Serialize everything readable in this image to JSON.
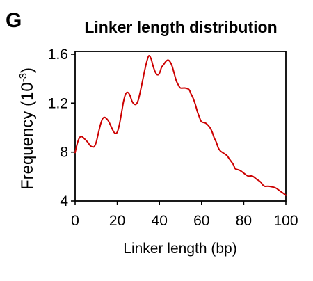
{
  "panel_label": "G",
  "chart_data": {
    "type": "line",
    "title": "Linker length distribution",
    "xlabel": "Linker length (bp)",
    "ylabel": {
      "main": "Frequency (10",
      "exponent": "-3",
      "close": ")"
    },
    "xlim": [
      0,
      100
    ],
    "ylim": [
      4,
      1.6
    ],
    "xticks": [
      0,
      20,
      40,
      60,
      80,
      100
    ],
    "xtick_labels": [
      "0",
      "20",
      "40",
      "60",
      "80",
      "100"
    ],
    "yticks": [
      {
        "label": "4",
        "frac": 0.0
      },
      {
        "label": "8",
        "frac": 0.333
      },
      {
        "label": "1.2",
        "frac": 0.667
      },
      {
        "label": "1.6",
        "frac": 1.0
      }
    ],
    "grid": false,
    "series": [
      {
        "color": "#cc0000",
        "points": [
          [
            0,
            0.33
          ],
          [
            1,
            0.39
          ],
          [
            2,
            0.43
          ],
          [
            3,
            0.44
          ],
          [
            4,
            0.43
          ],
          [
            6,
            0.4
          ],
          [
            7,
            0.38
          ],
          [
            8,
            0.37
          ],
          [
            9,
            0.37
          ],
          [
            10,
            0.4
          ],
          [
            11,
            0.46
          ],
          [
            12,
            0.52
          ],
          [
            13,
            0.56
          ],
          [
            14,
            0.57
          ],
          [
            15,
            0.56
          ],
          [
            16,
            0.54
          ],
          [
            18,
            0.48
          ],
          [
            19,
            0.46
          ],
          [
            20,
            0.47
          ],
          [
            21,
            0.52
          ],
          [
            22,
            0.6
          ],
          [
            23,
            0.68
          ],
          [
            24,
            0.73
          ],
          [
            25,
            0.74
          ],
          [
            26,
            0.72
          ],
          [
            27,
            0.68
          ],
          [
            28,
            0.66
          ],
          [
            29,
            0.66
          ],
          [
            30,
            0.69
          ],
          [
            31,
            0.75
          ],
          [
            32,
            0.82
          ],
          [
            33,
            0.89
          ],
          [
            34,
            0.95
          ],
          [
            35,
            0.99
          ],
          [
            36,
            0.97
          ],
          [
            37,
            0.92
          ],
          [
            38,
            0.88
          ],
          [
            39,
            0.86
          ],
          [
            40,
            0.87
          ],
          [
            41,
            0.91
          ],
          [
            42,
            0.93
          ],
          [
            43,
            0.95
          ],
          [
            44,
            0.96
          ],
          [
            45,
            0.95
          ],
          [
            46,
            0.92
          ],
          [
            47,
            0.87
          ],
          [
            48,
            0.82
          ],
          [
            49,
            0.79
          ],
          [
            50,
            0.77
          ],
          [
            52,
            0.77
          ],
          [
            54,
            0.76
          ],
          [
            55,
            0.73
          ],
          [
            56,
            0.7
          ],
          [
            57,
            0.66
          ],
          [
            58,
            0.61
          ],
          [
            59,
            0.57
          ],
          [
            60,
            0.54
          ],
          [
            62,
            0.53
          ],
          [
            64,
            0.5
          ],
          [
            65,
            0.47
          ],
          [
            66,
            0.43
          ],
          [
            67,
            0.4
          ],
          [
            68,
            0.36
          ],
          [
            69,
            0.34
          ],
          [
            70,
            0.33
          ],
          [
            72,
            0.31
          ],
          [
            73,
            0.29
          ],
          [
            75,
            0.25
          ],
          [
            76,
            0.22
          ],
          [
            78,
            0.21
          ],
          [
            80,
            0.19
          ],
          [
            82,
            0.17
          ],
          [
            84,
            0.17
          ],
          [
            86,
            0.15
          ],
          [
            88,
            0.13
          ],
          [
            89,
            0.11
          ],
          [
            90,
            0.1
          ],
          [
            92,
            0.1
          ],
          [
            95,
            0.09
          ],
          [
            97,
            0.07
          ],
          [
            99,
            0.05
          ],
          [
            100,
            0.04
          ]
        ]
      }
    ]
  }
}
